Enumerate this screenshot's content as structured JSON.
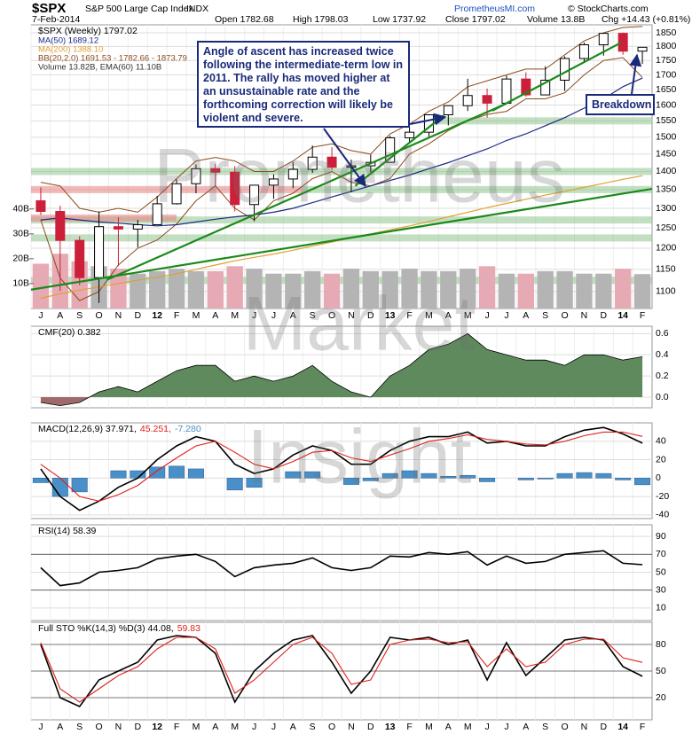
{
  "header": {
    "symbol": "$SPX",
    "name": "S&P 500 Large Cap Index",
    "exchange": "INDX",
    "date": "7-Feb-2014",
    "open": "Open 1782.68",
    "high": "High 1798.03",
    "low": "Low 1737.92",
    "close": "Close 1797.02",
    "volume": "Volume 13.8B",
    "change": "Chg +14.43 (+0.81%)",
    "site": "PrometheusMI.com",
    "credit": "© StockCharts.com",
    "watermark": [
      "Prometheus",
      "Market",
      "Insight"
    ]
  },
  "chart_data": [
    {
      "type": "candlestick",
      "title": "$SPX (Weekly) 1797.02",
      "log_scale": true,
      "grid": true,
      "categories": [
        "J",
        "A",
        "S",
        "O",
        "N",
        "D",
        "12",
        "F",
        "M",
        "A",
        "M",
        "J",
        "J",
        "A",
        "S",
        "O",
        "N",
        "D",
        "13",
        "F",
        "M",
        "A",
        "M",
        "J",
        "J",
        "A",
        "S",
        "O",
        "N",
        "D",
        "14",
        "F"
      ],
      "open": [
        1320,
        1292,
        1219,
        1131,
        1253,
        1247,
        1258,
        1312,
        1366,
        1408,
        1398,
        1310,
        1362,
        1379,
        1406,
        1441,
        1412,
        1416,
        1426,
        1498,
        1515,
        1569,
        1598,
        1631,
        1606,
        1686,
        1633,
        1682,
        1757,
        1806,
        1848,
        1783
      ],
      "high": [
        1356,
        1307,
        1229,
        1292,
        1277,
        1270,
        1333,
        1378,
        1420,
        1422,
        1415,
        1363,
        1392,
        1427,
        1475,
        1470,
        1434,
        1448,
        1504,
        1530,
        1570,
        1598,
        1687,
        1654,
        1698,
        1709,
        1730,
        1765,
        1814,
        1849,
        1851,
        1798.03
      ],
      "low": [
        1283,
        1101,
        1114,
        1075,
        1158,
        1202,
        1258,
        1310,
        1340,
        1358,
        1292,
        1267,
        1325,
        1354,
        1396,
        1403,
        1343,
        1398,
        1426,
        1485,
        1501,
        1536,
        1581,
        1560,
        1605,
        1627,
        1633,
        1646,
        1746,
        1767,
        1770,
        1737.92
      ],
      "close": [
        1292,
        1219,
        1131,
        1253,
        1247,
        1258,
        1312,
        1366,
        1408,
        1398,
        1310,
        1362,
        1379,
        1406,
        1441,
        1412,
        1416,
        1426,
        1498,
        1515,
        1569,
        1598,
        1631,
        1606,
        1686,
        1633,
        1682,
        1757,
        1806,
        1848,
        1783,
        1797.02
      ],
      "up_color": "#000000",
      "down_color": "#cc1f3a",
      "series": [
        {
          "name": "MA(50) 1689.12",
          "color": "#1c2a86",
          "values": [
            1270,
            1275,
            1270,
            1265,
            1262,
            1258,
            1255,
            1258,
            1265,
            1272,
            1278,
            1283,
            1290,
            1300,
            1315,
            1330,
            1345,
            1360,
            1375,
            1390,
            1408,
            1425,
            1445,
            1465,
            1490,
            1510,
            1535,
            1560,
            1590,
            1620,
            1660,
            1689.12
          ]
        },
        {
          "name": "MA(200) 1388.10",
          "color": "#e0a030",
          "values": [
            1085,
            1095,
            1103,
            1110,
            1118,
            1125,
            1132,
            1140,
            1150,
            1160,
            1170,
            1178,
            1186,
            1195,
            1205,
            1215,
            1225,
            1235,
            1245,
            1255,
            1266,
            1278,
            1290,
            1302,
            1313,
            1324,
            1335,
            1345,
            1356,
            1367,
            1378,
            1388.1
          ]
        }
      ],
      "bands": {
        "name": "BB(20,2.0) 1691.53 - 1782.66 - 1873.79",
        "color": "#8b4a1c",
        "upper": [
          1370,
          1360,
          1300,
          1290,
          1300,
          1290,
          1330,
          1380,
          1430,
          1440,
          1430,
          1400,
          1400,
          1430,
          1470,
          1480,
          1460,
          1450,
          1510,
          1540,
          1580,
          1610,
          1660,
          1680,
          1700,
          1720,
          1720,
          1770,
          1820,
          1850,
          1870,
          1873.79
        ],
        "lower": [
          1270,
          1130,
          1080,
          1100,
          1160,
          1200,
          1220,
          1260,
          1320,
          1360,
          1300,
          1270,
          1320,
          1340,
          1380,
          1400,
          1370,
          1360,
          1380,
          1450,
          1480,
          1520,
          1550,
          1570,
          1580,
          1620,
          1620,
          1640,
          1700,
          1750,
          1760,
          1691.53
        ]
      },
      "volume": {
        "name": "Volume 13.82B, EMA(60) 11.10B",
        "up_color": "#b4b4b4",
        "down_color": "#e6aab4",
        "ylim": [
          0,
          114
        ],
        "yticks": [
          {
            "value": 10,
            "label": "10B"
          },
          {
            "value": 20,
            "label": "20B"
          },
          {
            "value": 30,
            "label": "30B"
          },
          {
            "value": 40,
            "label": "40B"
          }
        ],
        "values": [
          18,
          22,
          19,
          17,
          16,
          14,
          15,
          16,
          15,
          15,
          17,
          16,
          14,
          14,
          15,
          14,
          16,
          15,
          15,
          16,
          15,
          15,
          16,
          17,
          14,
          14,
          15,
          15,
          14,
          14,
          16,
          13.82
        ]
      },
      "ylim": [
        1063,
        1880
      ],
      "yticks": [
        1100,
        1150,
        1200,
        1250,
        1300,
        1350,
        1400,
        1450,
        1500,
        1550,
        1600,
        1650,
        1700,
        1750,
        1800,
        1850
      ],
      "zones": [
        {
          "value": 1400,
          "color": "#8fc48f",
          "x": [
            -0.5,
            31.5
          ]
        },
        {
          "value": 1350,
          "color": "#8fc48f",
          "x": [
            13.5,
            31.5
          ]
        },
        {
          "value": 1270,
          "color": "#8fc48f",
          "x": [
            -0.5,
            31.5
          ]
        },
        {
          "value": 1225,
          "color": "#8fc48f",
          "x": [
            -0.5,
            31.5
          ]
        },
        {
          "value": 1125,
          "color": "#8fc48f",
          "x": [
            -0.5,
            31.5
          ]
        },
        {
          "value": 1550,
          "color": "#8fc48f",
          "x": [
            20,
            31.5
          ]
        },
        {
          "value": 1350,
          "color": "#e88080",
          "x": [
            -0.5,
            13.5
          ]
        },
        {
          "value": 1275,
          "color": "#e88080",
          "x": [
            -0.5,
            7
          ]
        }
      ],
      "trendlines": [
        {
          "color": "#1a8a1a",
          "x": [
            -0.5,
            31.5
          ],
          "y": [
            1104,
            1352
          ]
        },
        {
          "color": "#1a8a1a",
          "x": [
            3.4,
            23.96
          ],
          "y": [
            1126,
            1604
          ]
        },
        {
          "color": "#1a8a1a",
          "x": [
            16.2,
            20.76
          ],
          "y": [
            1360,
            1567
          ]
        },
        {
          "color": "#1a8a1a",
          "x": [
            23.27,
            29.9
          ],
          "y": [
            1582,
            1814
          ]
        }
      ],
      "annotations": [
        {
          "text": "Angle of ascent has increased twice following the intermediate-term low in 2011. The rally has moved higher at an unsustainable rate and the forthcoming correction will likely be violent and severe."
        },
        {
          "text": "Breakdown"
        }
      ]
    },
    {
      "type": "area",
      "grid": true,
      "ylim": [
        -0.1,
        0.67
      ],
      "yticks": [
        {
          "value": 0,
          "label": "0.0"
        },
        0.2,
        0.4,
        0.6
      ],
      "pos_color": "#5e8a5e",
      "neg_color": "#a06a6a",
      "series": [
        {
          "name": "CMF(20) 0.382",
          "color": "#000000",
          "values": [
            -0.05,
            -0.08,
            -0.05,
            0.05,
            0.1,
            0.05,
            0.15,
            0.25,
            0.3,
            0.3,
            0.15,
            0.2,
            0.15,
            0.2,
            0.3,
            0.15,
            0.05,
            0,
            0.2,
            0.3,
            0.45,
            0.5,
            0.6,
            0.45,
            0.4,
            0.35,
            0.35,
            0.3,
            0.4,
            0.4,
            0.35,
            0.382
          ]
        }
      ]
    },
    {
      "type": "combo",
      "grid": true,
      "ylim": [
        -44,
        60
      ],
      "yticks": [
        -40,
        -20,
        0,
        20,
        40
      ],
      "series": [
        {
          "name": "MACD(12,26,9) 37.971,",
          "color": "#000000",
          "kind": "line",
          "values": [
            10,
            -20,
            -35,
            -25,
            -10,
            0,
            20,
            35,
            45,
            40,
            15,
            5,
            10,
            25,
            35,
            30,
            15,
            15,
            30,
            40,
            45,
            45,
            50,
            38,
            40,
            35,
            35,
            45,
            52,
            55,
            48,
            37.971
          ]
        },
        {
          "name": "45.251,",
          "color": "#e0201a",
          "kind": "line",
          "values": [
            15,
            0,
            -20,
            -25,
            -18,
            -8,
            8,
            22,
            35,
            40,
            28,
            15,
            10,
            18,
            28,
            30,
            22,
            18,
            25,
            32,
            40,
            43,
            47,
            42,
            40,
            37,
            36,
            40,
            46,
            50,
            50,
            45.251
          ]
        },
        {
          "name": "-7.280",
          "color": "#4a90c8",
          "kind": "bar",
          "values": [
            -5,
            -20,
            -15,
            0,
            8,
            8,
            12,
            13,
            10,
            0,
            -13,
            -10,
            0,
            7,
            7,
            0,
            -7,
            -3,
            5,
            8,
            5,
            2,
            3,
            -4,
            0,
            -2,
            -1,
            5,
            6,
            5,
            -2,
            -7.28
          ]
        }
      ]
    },
    {
      "type": "line",
      "grid": true,
      "ylim": [
        -4,
        103
      ],
      "yticks": [
        10,
        30,
        50,
        70,
        90
      ],
      "reference_lines": [
        70,
        30
      ],
      "series": [
        {
          "name": "RSI(14) 58.39",
          "color": "#000000",
          "values": [
            55,
            35,
            38,
            50,
            52,
            55,
            65,
            68,
            70,
            62,
            45,
            55,
            58,
            60,
            66,
            55,
            52,
            55,
            68,
            67,
            72,
            70,
            73,
            58,
            68,
            60,
            62,
            70,
            72,
            74,
            60,
            58.39
          ]
        }
      ]
    },
    {
      "type": "line",
      "grid": true,
      "ylim": [
        -5,
        105
      ],
      "yticks": [
        20,
        50,
        80
      ],
      "reference_lines": [
        80,
        50,
        20
      ],
      "categories": [
        "J",
        "A",
        "S",
        "O",
        "N",
        "D",
        "12",
        "F",
        "M",
        "A",
        "M",
        "J",
        "J",
        "A",
        "S",
        "O",
        "N",
        "D",
        "13",
        "F",
        "M",
        "A",
        "M",
        "J",
        "J",
        "A",
        "S",
        "O",
        "N",
        "D",
        "14",
        "F"
      ],
      "series": [
        {
          "name": "Full STO %K(14,3) %D(3) 44.08,",
          "color": "#000000",
          "values": [
            80,
            20,
            10,
            40,
            50,
            60,
            85,
            90,
            88,
            70,
            15,
            50,
            70,
            85,
            90,
            60,
            25,
            50,
            88,
            85,
            88,
            80,
            85,
            40,
            82,
            45,
            65,
            85,
            88,
            85,
            55,
            44.08
          ]
        },
        {
          "name": "59.83",
          "color": "#e0201a",
          "values": [
            82,
            30,
            15,
            30,
            45,
            55,
            75,
            88,
            88,
            75,
            25,
            40,
            60,
            80,
            88,
            70,
            35,
            40,
            80,
            85,
            86,
            82,
            83,
            55,
            75,
            55,
            60,
            80,
            86,
            86,
            65,
            59.83
          ]
        }
      ]
    }
  ]
}
